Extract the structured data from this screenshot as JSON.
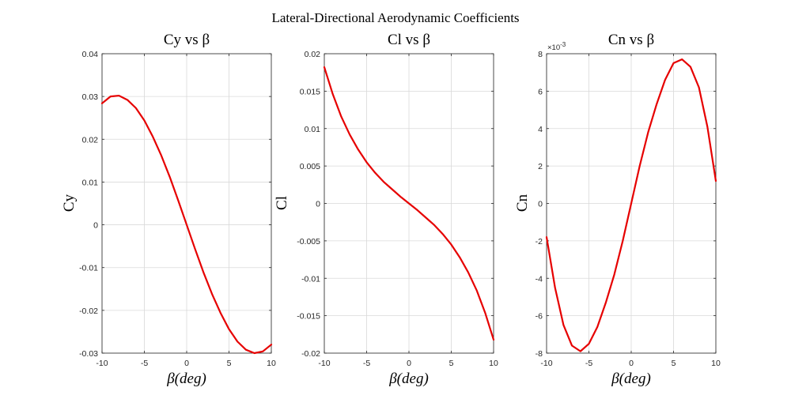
{
  "figure": {
    "title": "Lateral-Directional Aerodynamic Coefficients",
    "line_color": "#e60000",
    "grid_color": "#d9d9d9",
    "axes_color": "#262626"
  },
  "chart_data": [
    {
      "type": "line",
      "title": "Cy vs β",
      "xlabel": "β(deg)",
      "ylabel": "Cy",
      "xlim": [
        -10,
        10
      ],
      "ylim": [
        -0.03,
        0.04
      ],
      "xticks": [
        "-10",
        "-5",
        "0",
        "5",
        "10"
      ],
      "yticks": [
        "0.04",
        "0.03",
        "0.02",
        "0.01",
        "0",
        "-0.01",
        "-0.02",
        "-0.03"
      ],
      "exponent_label": "",
      "grid": true,
      "series": [
        {
          "x": [
            -10,
            -9,
            -8,
            -7,
            -6,
            -5,
            -4,
            -3,
            -2,
            -1,
            0,
            1,
            2,
            3,
            4,
            5,
            6,
            7,
            8,
            9,
            10
          ],
          "y": [
            0.0284,
            0.03,
            0.0302,
            0.0292,
            0.0273,
            0.0244,
            0.0206,
            0.0162,
            0.0112,
            0.0057,
            0.0,
            -0.0057,
            -0.0112,
            -0.0162,
            -0.0206,
            -0.0244,
            -0.0273,
            -0.0292,
            -0.03,
            -0.0296,
            -0.028
          ]
        }
      ]
    },
    {
      "type": "line",
      "title": "Cl vs β",
      "xlabel": "β(deg)",
      "ylabel": "Cl",
      "xlim": [
        -10,
        10
      ],
      "ylim": [
        -0.02,
        0.02
      ],
      "xticks": [
        "-10",
        "-5",
        "0",
        "5",
        "10"
      ],
      "yticks": [
        "0.02",
        "0.015",
        "0.01",
        "0.005",
        "0",
        "-0.005",
        "-0.01",
        "-0.015",
        "-0.02"
      ],
      "exponent_label": "",
      "grid": true,
      "series": [
        {
          "x": [
            -10,
            -9,
            -8,
            -7,
            -6,
            -5,
            -4,
            -3,
            -2,
            -1,
            0,
            1,
            2,
            3,
            4,
            5,
            6,
            7,
            8,
            9,
            10
          ],
          "y": [
            0.0182,
            0.0146,
            0.0116,
            0.0092,
            0.0072,
            0.0055,
            0.0041,
            0.0029,
            0.0019,
            0.0009,
            0.0,
            -0.0009,
            -0.0019,
            -0.0029,
            -0.0041,
            -0.0055,
            -0.0072,
            -0.0092,
            -0.0116,
            -0.0146,
            -0.0182
          ]
        }
      ]
    },
    {
      "type": "line",
      "title": "Cn vs β",
      "xlabel": "β(deg)",
      "ylabel": "Cn",
      "xlim": [
        -10,
        10
      ],
      "ylim": [
        -0.008,
        0.008
      ],
      "xticks": [
        "-10",
        "-5",
        "0",
        "5",
        "10"
      ],
      "yticks": [
        "8",
        "6",
        "4",
        "2",
        "0",
        "-2",
        "-4",
        "-6",
        "-8"
      ],
      "exponent_label": "×10",
      "exponent_power": "-3",
      "grid": true,
      "series": [
        {
          "x": [
            -10,
            -9,
            -8,
            -7,
            -6,
            -5,
            -4,
            -3,
            -2,
            -1,
            0,
            1,
            2,
            3,
            4,
            5,
            6,
            7,
            8,
            9,
            10
          ],
          "y": [
            -0.0018,
            -0.0045,
            -0.0065,
            -0.0076,
            -0.0079,
            -0.0075,
            -0.0066,
            -0.0053,
            -0.0038,
            -0.002,
            0.0,
            0.002,
            0.0038,
            0.0053,
            0.0066,
            0.0075,
            0.0077,
            0.0073,
            0.0062,
            0.0041,
            0.0012
          ]
        }
      ]
    }
  ]
}
